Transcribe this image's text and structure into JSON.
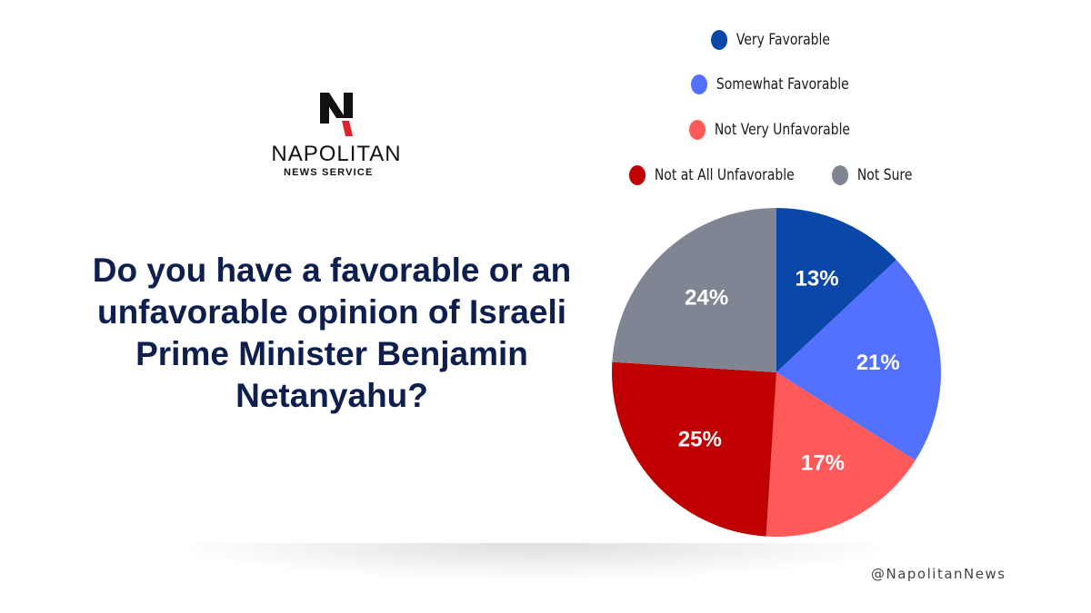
{
  "logo": {
    "name": "NAPOLITAN",
    "subtitle": "NEWS SERVICE",
    "mark_icon": "napolitan-n-icon"
  },
  "question": "Do you have a favorable or an unfavorable opinion of Israeli Prime Minister Benjamin Netanyahu?",
  "handle": "@NapolitanNews",
  "chart_data": {
    "type": "pie",
    "title": "",
    "legend_position": "top",
    "slices": [
      {
        "label": "Very Favorable",
        "value": 13,
        "display": "13%",
        "color": "#0a47a9"
      },
      {
        "label": "Somewhat Favorable",
        "value": 21,
        "display": "21%",
        "color": "#5470ff"
      },
      {
        "label": "Not Very Unfavorable",
        "value": 17,
        "display": "17%",
        "color": "#ff5a5a"
      },
      {
        "label": "Not at All Unfavorable",
        "value": 25,
        "display": "25%",
        "color": "#c00000"
      },
      {
        "label": "Not Sure",
        "value": 24,
        "display": "24%",
        "color": "#7f8593"
      }
    ]
  }
}
